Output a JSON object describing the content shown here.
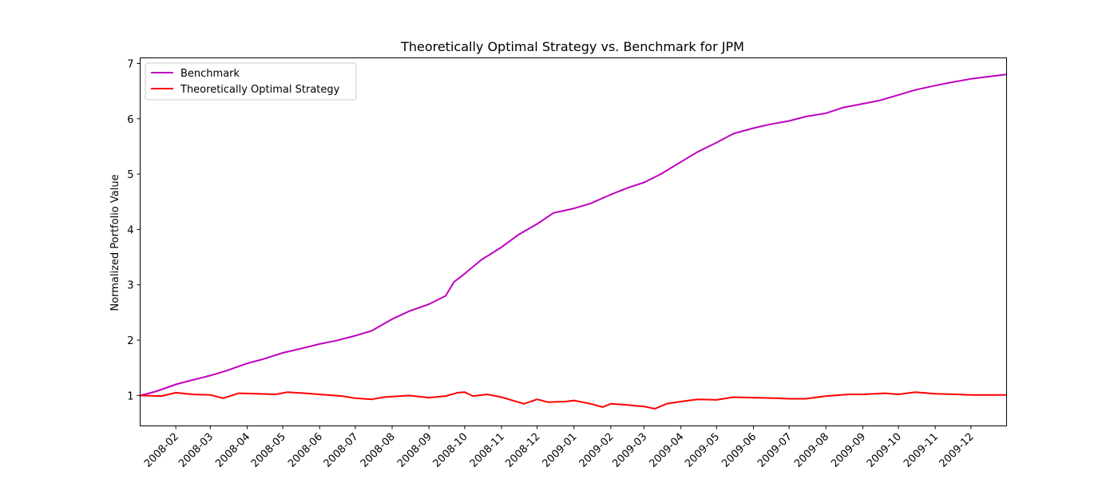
{
  "chart_data": {
    "type": "line",
    "title": "Theoretically Optimal Strategy vs. Benchmark for JPM",
    "xlabel": "",
    "ylabel": "Normalized Portfolio Value",
    "xlim": [
      "2008-01-02",
      "2009-12-31"
    ],
    "ylim": [
      0.45,
      7.1
    ],
    "x_ticks": [
      "2008-02",
      "2008-03",
      "2008-04",
      "2008-05",
      "2008-06",
      "2008-07",
      "2008-08",
      "2008-09",
      "2008-10",
      "2008-11",
      "2008-12",
      "2009-01",
      "2009-02",
      "2009-03",
      "2009-04",
      "2009-05",
      "2009-06",
      "2009-07",
      "2009-08",
      "2009-09",
      "2009-10",
      "2009-11",
      "2009-12"
    ],
    "y_ticks": [
      1,
      2,
      3,
      4,
      5,
      6,
      7
    ],
    "grid": false,
    "legend_position": "top-left",
    "series": [
      {
        "name": "Benchmark",
        "color": "#bf00bf",
        "points": [
          [
            "2008-01-02",
            1.0
          ],
          [
            "2008-01-15",
            1.07
          ],
          [
            "2008-02-01",
            1.2
          ],
          [
            "2008-02-15",
            1.28
          ],
          [
            "2008-03-01",
            1.36
          ],
          [
            "2008-03-15",
            1.45
          ],
          [
            "2008-04-01",
            1.58
          ],
          [
            "2008-04-15",
            1.66
          ],
          [
            "2008-05-01",
            1.77
          ],
          [
            "2008-05-15",
            1.84
          ],
          [
            "2008-06-01",
            1.93
          ],
          [
            "2008-06-15",
            1.99
          ],
          [
            "2008-07-01",
            2.08
          ],
          [
            "2008-07-15",
            2.17
          ],
          [
            "2008-08-01",
            2.38
          ],
          [
            "2008-08-15",
            2.52
          ],
          [
            "2008-09-01",
            2.65
          ],
          [
            "2008-09-15",
            2.8
          ],
          [
            "2008-09-22",
            3.05
          ],
          [
            "2008-10-01",
            3.2
          ],
          [
            "2008-10-15",
            3.45
          ],
          [
            "2008-11-01",
            3.68
          ],
          [
            "2008-11-15",
            3.9
          ],
          [
            "2008-12-01",
            4.1
          ],
          [
            "2008-12-15",
            4.3
          ],
          [
            "2009-01-01",
            4.38
          ],
          [
            "2009-01-15",
            4.47
          ],
          [
            "2009-02-01",
            4.63
          ],
          [
            "2009-02-15",
            4.75
          ],
          [
            "2009-03-01",
            4.85
          ],
          [
            "2009-03-15",
            5.0
          ],
          [
            "2009-04-01",
            5.22
          ],
          [
            "2009-04-15",
            5.4
          ],
          [
            "2009-05-01",
            5.57
          ],
          [
            "2009-05-15",
            5.73
          ],
          [
            "2009-06-01",
            5.83
          ],
          [
            "2009-06-15",
            5.9
          ],
          [
            "2009-07-01",
            5.96
          ],
          [
            "2009-07-15",
            6.04
          ],
          [
            "2009-08-01",
            6.1
          ],
          [
            "2009-08-15",
            6.2
          ],
          [
            "2009-09-01",
            6.27
          ],
          [
            "2009-09-15",
            6.33
          ],
          [
            "2009-10-01",
            6.43
          ],
          [
            "2009-10-15",
            6.52
          ],
          [
            "2009-11-01",
            6.6
          ],
          [
            "2009-11-15",
            6.66
          ],
          [
            "2009-12-01",
            6.72
          ],
          [
            "2009-12-15",
            6.76
          ],
          [
            "2009-12-31",
            6.8
          ]
        ]
      },
      {
        "name": "Theoretically Optimal Strategy",
        "color": "#ff0000",
        "points": [
          [
            "2008-01-02",
            1.0
          ],
          [
            "2008-01-20",
            0.99
          ],
          [
            "2008-02-01",
            1.05
          ],
          [
            "2008-02-15",
            1.02
          ],
          [
            "2008-03-01",
            1.01
          ],
          [
            "2008-03-12",
            0.95
          ],
          [
            "2008-03-25",
            1.04
          ],
          [
            "2008-04-10",
            1.03
          ],
          [
            "2008-04-25",
            1.02
          ],
          [
            "2008-05-05",
            1.06
          ],
          [
            "2008-05-20",
            1.04
          ],
          [
            "2008-06-01",
            1.02
          ],
          [
            "2008-06-20",
            0.99
          ],
          [
            "2008-07-01",
            0.95
          ],
          [
            "2008-07-15",
            0.93
          ],
          [
            "2008-07-25",
            0.97
          ],
          [
            "2008-08-01",
            0.98
          ],
          [
            "2008-08-15",
            1.0
          ],
          [
            "2008-09-01",
            0.96
          ],
          [
            "2008-09-15",
            0.99
          ],
          [
            "2008-09-25",
            1.05
          ],
          [
            "2008-10-01",
            1.06
          ],
          [
            "2008-10-08",
            0.99
          ],
          [
            "2008-10-20",
            1.02
          ],
          [
            "2008-11-01",
            0.97
          ],
          [
            "2008-11-20",
            0.85
          ],
          [
            "2008-12-01",
            0.93
          ],
          [
            "2008-12-10",
            0.88
          ],
          [
            "2008-12-25",
            0.89
          ],
          [
            "2009-01-01",
            0.91
          ],
          [
            "2009-01-15",
            0.85
          ],
          [
            "2009-01-25",
            0.79
          ],
          [
            "2009-02-01",
            0.85
          ],
          [
            "2009-02-15",
            0.83
          ],
          [
            "2009-03-01",
            0.8
          ],
          [
            "2009-03-10",
            0.76
          ],
          [
            "2009-03-20",
            0.85
          ],
          [
            "2009-04-01",
            0.89
          ],
          [
            "2009-04-15",
            0.93
          ],
          [
            "2009-05-01",
            0.92
          ],
          [
            "2009-05-15",
            0.97
          ],
          [
            "2009-06-01",
            0.96
          ],
          [
            "2009-06-20",
            0.95
          ],
          [
            "2009-07-01",
            0.94
          ],
          [
            "2009-07-15",
            0.94
          ],
          [
            "2009-08-01",
            0.99
          ],
          [
            "2009-08-20",
            1.02
          ],
          [
            "2009-09-01",
            1.02
          ],
          [
            "2009-09-20",
            1.04
          ],
          [
            "2009-10-01",
            1.02
          ],
          [
            "2009-10-15",
            1.06
          ],
          [
            "2009-11-01",
            1.03
          ],
          [
            "2009-11-20",
            1.02
          ],
          [
            "2009-12-01",
            1.01
          ],
          [
            "2009-12-31",
            1.01
          ]
        ]
      }
    ]
  }
}
